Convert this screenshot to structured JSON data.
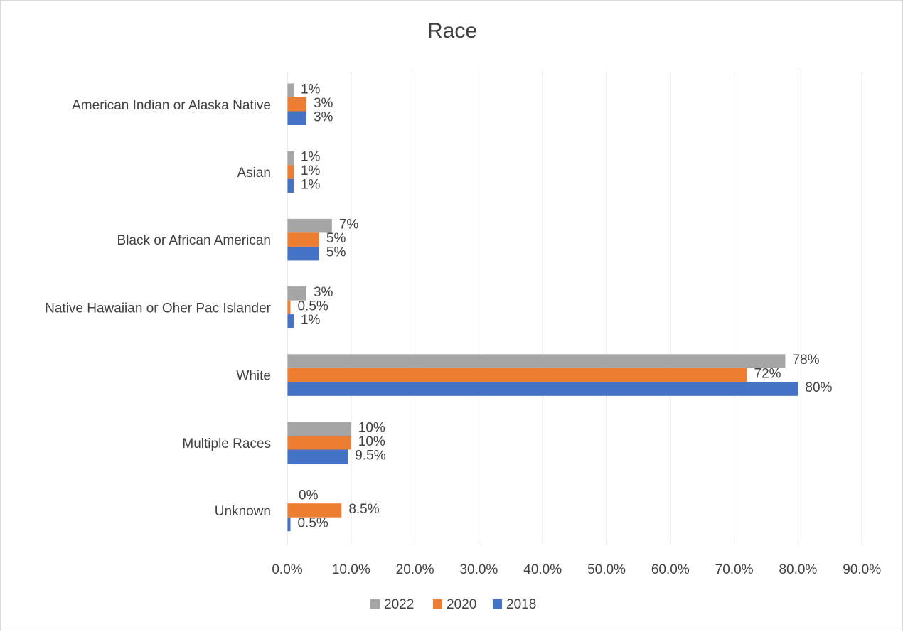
{
  "chart_data": {
    "type": "bar",
    "orientation": "horizontal",
    "title": "Race",
    "categories": [
      "American Indian or Alaska Native",
      "Asian",
      "Black or African American",
      "Native Hawaiian or Oher Pac Islander",
      "White",
      "Multiple Races",
      "Unknown"
    ],
    "series": [
      {
        "name": "2022",
        "color": "#a5a5a5",
        "values": [
          1,
          1,
          7,
          3,
          78,
          10,
          0
        ],
        "labels": [
          "1%",
          "1%",
          "7%",
          "3%",
          "78%",
          "10%",
          "0%"
        ]
      },
      {
        "name": "2020",
        "color": "#ed7d31",
        "values": [
          3,
          1,
          5,
          0.5,
          72,
          10,
          8.5
        ],
        "labels": [
          "3%",
          "1%",
          "5%",
          "0.5%",
          "72%",
          "10%",
          "8.5%"
        ]
      },
      {
        "name": "2018",
        "color": "#4472c4",
        "values": [
          3,
          1,
          5,
          1,
          80,
          9.5,
          0.5
        ],
        "labels": [
          "3%",
          "1%",
          "5%",
          "1%",
          "80%",
          "9.5%",
          "0.5%"
        ]
      }
    ],
    "x_ticks": [
      "0.0%",
      "10.0%",
      "20.0%",
      "30.0%",
      "40.0%",
      "50.0%",
      "60.0%",
      "70.0%",
      "80.0%",
      "90.0%"
    ],
    "xlim": [
      0,
      90
    ],
    "grid": true,
    "legend": "bottom"
  }
}
